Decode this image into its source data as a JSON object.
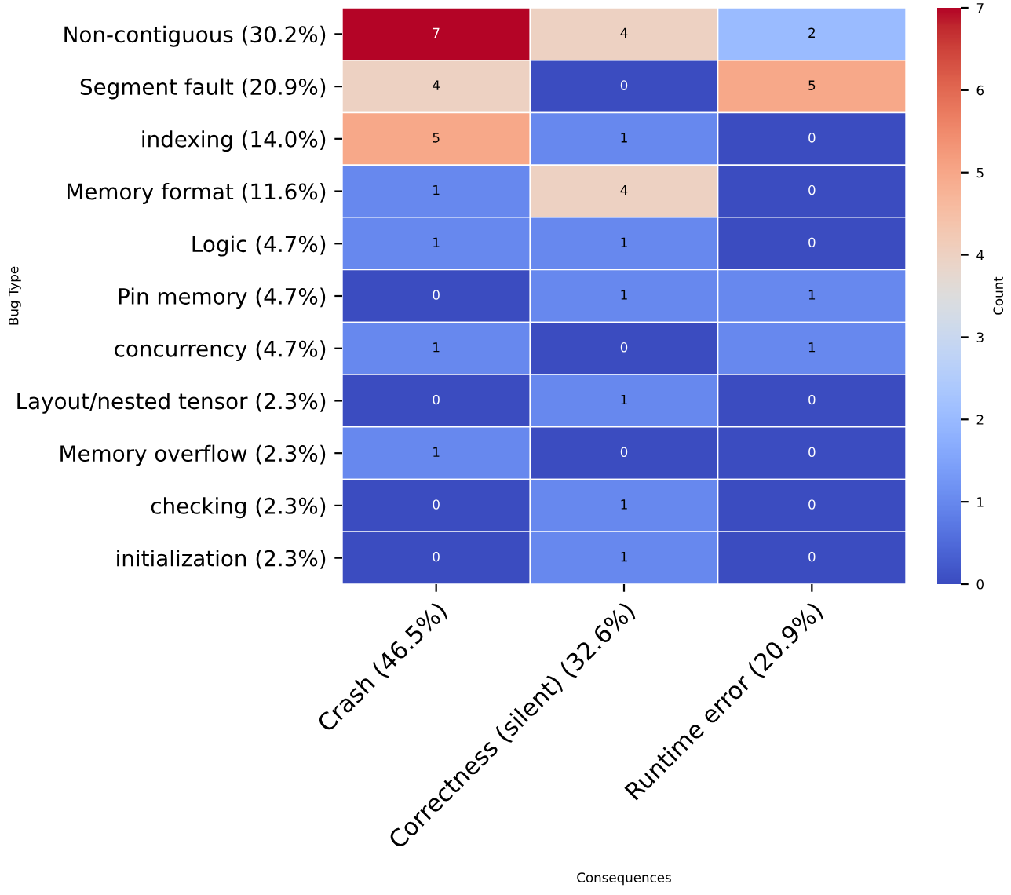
{
  "chart_data": {
    "type": "heatmap",
    "xlabel": "Consequences",
    "ylabel": "Bug Type",
    "clabel": "Count",
    "categories": [
      "Crash (46.5%)",
      "Correctness (silent) (32.6%)",
      "Runtime error (20.9%)"
    ],
    "y_categories": [
      "Non-contiguous (30.2%)",
      "Segment fault (20.9%)",
      "indexing (14.0%)",
      "Memory format (11.6%)",
      "Logic (4.7%)",
      "Pin memory (4.7%)",
      "concurrency (4.7%)",
      "Layout/nested tensor (2.3%)",
      "Memory overflow (2.3%)",
      "checking (2.3%)",
      "initialization (2.3%)"
    ],
    "cells": [
      [
        7,
        4,
        2
      ],
      [
        4,
        0,
        5
      ],
      [
        5,
        1,
        0
      ],
      [
        1,
        4,
        0
      ],
      [
        1,
        1,
        0
      ],
      [
        0,
        1,
        1
      ],
      [
        1,
        0,
        1
      ],
      [
        0,
        1,
        0
      ],
      [
        1,
        0,
        0
      ],
      [
        0,
        1,
        0
      ],
      [
        0,
        1,
        0
      ]
    ],
    "clim": [
      0,
      7
    ],
    "cticks": [
      0,
      1,
      2,
      3,
      4,
      5,
      6,
      7
    ],
    "data_labels": true
  }
}
